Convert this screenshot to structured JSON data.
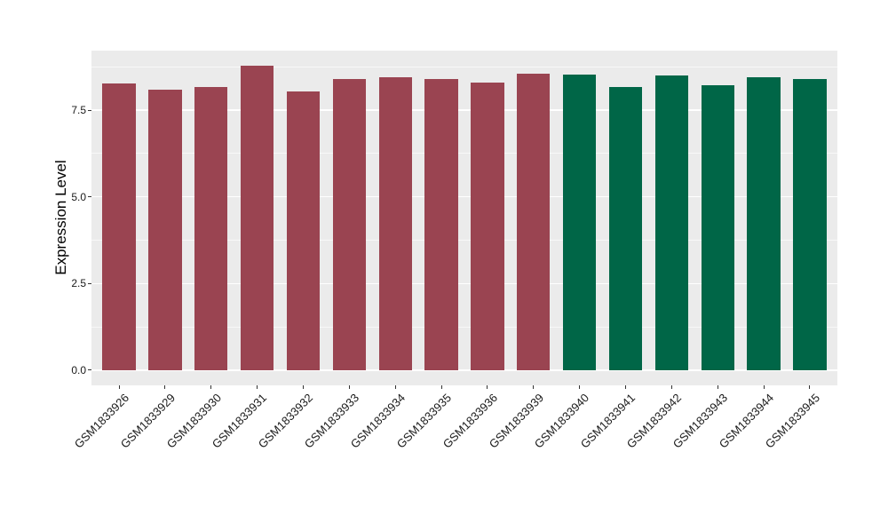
{
  "figure": {
    "background": "#FFFFFF"
  },
  "chart_data": {
    "type": "bar",
    "title": "",
    "ylabel": "Expression Level",
    "xlabel": "",
    "categories": [
      "GSM1833926",
      "GSM1833929",
      "GSM1833930",
      "GSM1833931",
      "GSM1833932",
      "GSM1833933",
      "GSM1833934",
      "GSM1833935",
      "GSM1833936",
      "GSM1833939",
      "GSM1833940",
      "GSM1833941",
      "GSM1833942",
      "GSM1833943",
      "GSM1833944",
      "GSM1833945"
    ],
    "values": [
      8.27,
      8.1,
      8.16,
      8.78,
      8.04,
      8.39,
      8.44,
      8.41,
      8.31,
      8.55,
      8.53,
      8.16,
      8.51,
      8.23,
      8.46,
      8.4
    ],
    "bar_groups": [
      0,
      0,
      0,
      0,
      0,
      0,
      0,
      0,
      0,
      0,
      1,
      1,
      1,
      1,
      1,
      1
    ],
    "group_colors": [
      "#9A4451",
      "#006647"
    ],
    "ytick_values": [
      0,
      2.5,
      5,
      7.5
    ],
    "ytick_labels": [
      "0.0",
      "2.5",
      "5.0",
      "7.5"
    ],
    "y_minor_ticks": [
      1.25,
      3.75,
      6.25,
      8.75
    ],
    "ylim": [
      -0.44,
      9.22
    ],
    "bar_width_ratio": 0.72,
    "grid": "major+minor",
    "legend": "none",
    "colors": {
      "panel_bg": "#EBEBEB",
      "grid_major": "#FFFFFF",
      "grid_minor": "#FFFFFF",
      "tick_mark": "#333333",
      "tick_text": "#1A1A1A",
      "axis_title_text": "#000000"
    }
  }
}
